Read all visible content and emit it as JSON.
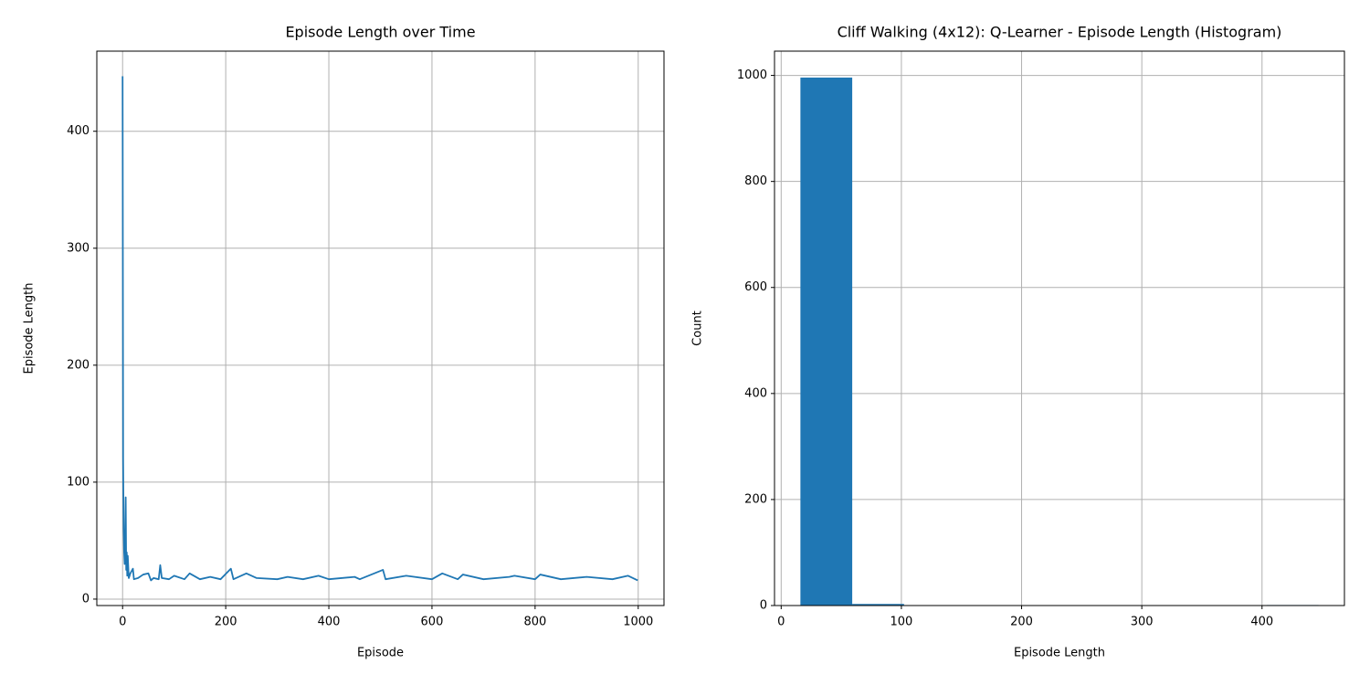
{
  "chart_data": [
    {
      "type": "line",
      "title": "Episode Length over Time",
      "x_label": "Episode",
      "y_label": "Episode Length",
      "x": [
        0,
        1,
        2,
        3,
        4,
        5,
        6,
        7,
        8,
        9,
        10,
        12,
        15,
        20,
        22,
        30,
        40,
        50,
        55,
        60,
        70,
        73,
        76,
        90,
        100,
        120,
        130,
        150,
        170,
        190,
        210,
        215,
        240,
        260,
        300,
        320,
        350,
        380,
        400,
        450,
        460,
        505,
        510,
        550,
        600,
        620,
        650,
        660,
        700,
        750,
        760,
        800,
        810,
        850,
        900,
        950,
        980,
        999
      ],
      "series": [
        {
          "name": "Episode Length",
          "color": "#1f77b4",
          "values": [
            447,
            120,
            60,
            40,
            30,
            50,
            87,
            25,
            40,
            20,
            37,
            18,
            22,
            26,
            17,
            18,
            21,
            22,
            16,
            18,
            17,
            29,
            18,
            17,
            20,
            17,
            22,
            17,
            19,
            17,
            26,
            17,
            22,
            18,
            17,
            19,
            17,
            20,
            17,
            19,
            17,
            25,
            17,
            20,
            17,
            22,
            17,
            21,
            17,
            19,
            20,
            17,
            21,
            17,
            19,
            17,
            20,
            16
          ]
        }
      ],
      "xlim": [
        -50,
        1050
      ],
      "xticks": [
        0,
        200,
        400,
        600,
        800,
        1000
      ],
      "ylim": [
        -5.5,
        468.5
      ],
      "yticks": [
        0,
        100,
        200,
        300,
        400
      ],
      "grid": true
    },
    {
      "type": "histogram",
      "title": "Cliff Walking (4x12): Q-Learner - Episode Length (Histogram)",
      "x_label": "Episode Length",
      "y_label": "Count",
      "bins": [
        16,
        59.1,
        102.2,
        145.3,
        188.4,
        231.5,
        274.6,
        317.7,
        360.8,
        403.9,
        447
      ],
      "values": [
        996,
        3,
        0,
        0,
        0,
        0,
        0,
        0,
        0,
        1
      ],
      "color": "#1f77b4",
      "xlim": [
        -5.55,
        468.55
      ],
      "xticks": [
        0,
        100,
        200,
        300,
        400
      ],
      "ylim": [
        0,
        1045.8
      ],
      "yticks": [
        0,
        200,
        400,
        600,
        800,
        1000
      ],
      "grid": true
    }
  ]
}
